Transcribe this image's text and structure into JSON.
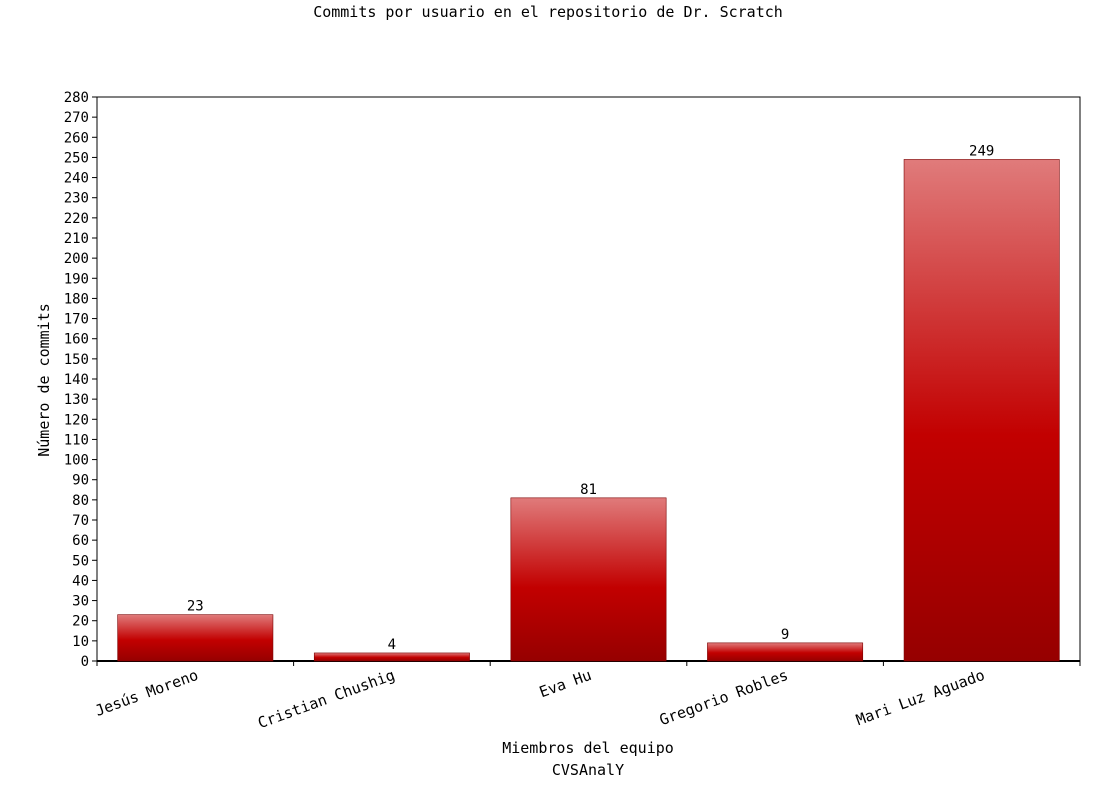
{
  "chart_data": {
    "type": "bar",
    "title": "Commits por usuario en el repositorio de Dr. Scratch",
    "xlabel": "Miembros del equipo",
    "subtitle": "CVSAnalY",
    "ylabel": "Número de commits",
    "categories": [
      "Jesús Moreno",
      "Cristian Chushig",
      "Eva Hu",
      "Gregorio Robles",
      "Mari Luz Aguado"
    ],
    "values": [
      23,
      4,
      81,
      9,
      249
    ],
    "data_labels": [
      "23",
      "4",
      "81",
      "9",
      "249"
    ],
    "ylim": [
      0,
      280
    ],
    "yticks": [
      "0",
      "10",
      "20",
      "30",
      "40",
      "50",
      "60",
      "70",
      "80",
      "90",
      "100",
      "110",
      "120",
      "130",
      "140",
      "150",
      "160",
      "170",
      "180",
      "190",
      "200",
      "210",
      "220",
      "230",
      "240",
      "250",
      "260",
      "270",
      "280"
    ],
    "grid": false,
    "legend": "none",
    "colors": {
      "bar_top": "#e07b7b",
      "bar_mid": "#c20000",
      "bar_bottom": "#960000",
      "axis": "#000000"
    }
  }
}
